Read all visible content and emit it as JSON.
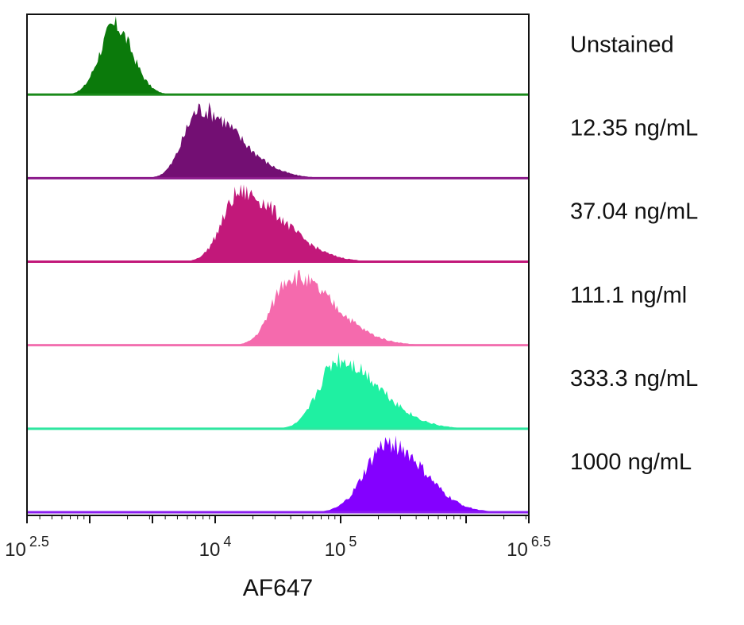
{
  "chart_data": {
    "type": "histogram",
    "xlabel": "AF647",
    "x_scale": "log10",
    "xlim": [
      2.5,
      6.5
    ],
    "x_ticks": [
      {
        "value": 2.5,
        "base": "10",
        "exp": "2.5"
      },
      {
        "value": 4,
        "base": "10",
        "exp": "4"
      },
      {
        "value": 5,
        "base": "10",
        "exp": "5"
      },
      {
        "value": 6.5,
        "base": "10",
        "exp": "6.5"
      }
    ],
    "series": [
      {
        "name": "Unstained",
        "color": "#1a8a1a",
        "fill": "#0b7a0b",
        "peak_log10": 3.2,
        "width": 0.12,
        "skew": 0.02
      },
      {
        "name": "12.35 ng/mL",
        "color": "#8b1a8b",
        "fill": "#730f73",
        "peak_log10": 3.88,
        "width": 0.13,
        "skew": 0.18
      },
      {
        "name": "37.04 ng/mL",
        "color": "#c2187a",
        "fill": "#c2187a",
        "peak_log10": 4.2,
        "width": 0.14,
        "skew": 0.2
      },
      {
        "name": "111.1 ng/ml",
        "color": "#f26faf",
        "fill": "#f56aad",
        "peak_log10": 4.6,
        "width": 0.14,
        "skew": 0.2
      },
      {
        "name": "333.3 ng/mL",
        "color": "#2fe6a0",
        "fill": "#1ff0a2",
        "peak_log10": 4.98,
        "width": 0.15,
        "skew": 0.18
      },
      {
        "name": "1000 ng/mL",
        "color": "#8a1cf0",
        "fill": "#8400ff",
        "peak_log10": 5.38,
        "width": 0.18,
        "skew": 0.1
      }
    ]
  }
}
